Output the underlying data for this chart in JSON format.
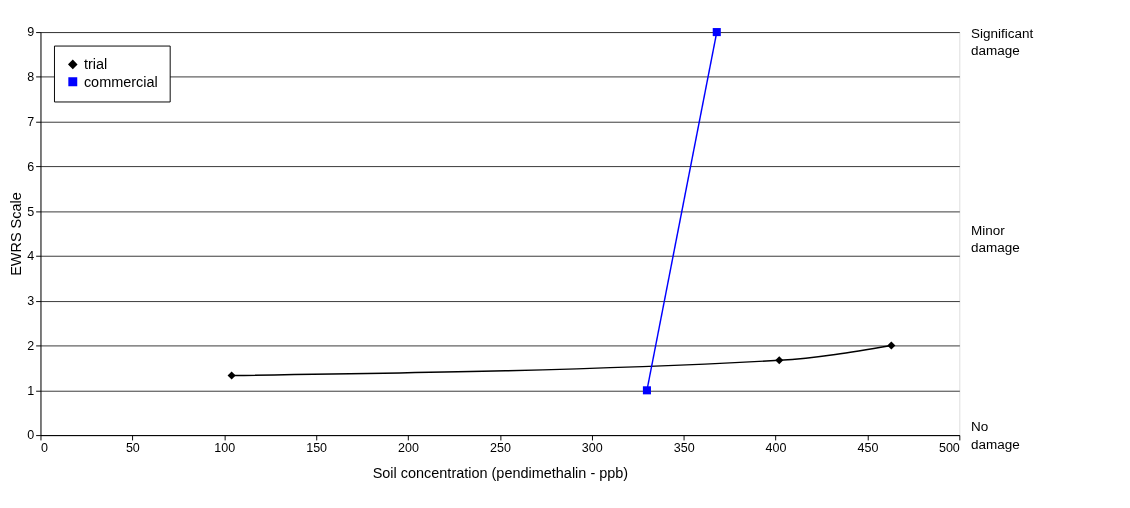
{
  "chart_data": {
    "type": "line",
    "xlabel": "Soil concentration (pendimethalin - ppb)",
    "ylabel": "EWRS Scale",
    "series": [
      {
        "name": "trial",
        "color": "#000000",
        "marker": "diamond",
        "x": [
          104,
          402,
          463
        ],
        "values": [
          1.33,
          1.67,
          2
        ]
      },
      {
        "name": "commercial",
        "color": "#0000ff",
        "marker": "square",
        "x": [
          330,
          368
        ],
        "values": [
          1,
          9
        ]
      }
    ],
    "xlim": [
      0,
      500
    ],
    "xticks": [
      0,
      50,
      100,
      150,
      200,
      250,
      300,
      350,
      400,
      450,
      500
    ],
    "ylim": [
      0,
      9
    ],
    "yticks": [
      0,
      1,
      2,
      3,
      4,
      5,
      6,
      7,
      8,
      9
    ],
    "grid": "y",
    "legend": "top left",
    "line_style": "solid",
    "annotations": [
      "Significant damage",
      "Minor damage",
      "No damage"
    ]
  }
}
